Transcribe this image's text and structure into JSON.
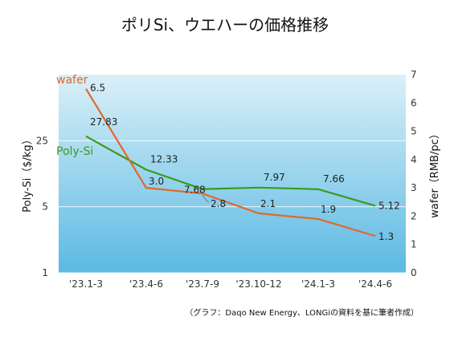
{
  "chart_data": {
    "type": "line",
    "title": "ポリSi、ウエハーの価格推移",
    "categories": [
      "'23.1-3",
      "'23.4-6",
      "'23.7-9",
      "'23.10-12",
      "'24.1-3",
      "'24.4-6"
    ],
    "series": [
      {
        "name": "Poly-Si",
        "axis": "left",
        "color": "#3a9a1f",
        "values": [
          27.83,
          12.33,
          7.68,
          7.97,
          7.66,
          5.12
        ]
      },
      {
        "name": "wafer",
        "axis": "right",
        "color": "#e0682a",
        "values": [
          6.5,
          3.0,
          2.8,
          2.1,
          1.9,
          1.3
        ]
      }
    ],
    "y_left": {
      "label": "Poly-Si（$/kg）",
      "scale": "log",
      "range": [
        1,
        125
      ],
      "ticks": [
        1,
        5,
        25
      ]
    },
    "y_right": {
      "label": "wafer（RMB/pc）",
      "scale": "linear",
      "range": [
        0,
        7
      ],
      "ticks": [
        0,
        1,
        2,
        3,
        4,
        5,
        6,
        7
      ]
    },
    "source": "（グラフ：Daqo New Energy、LONGiの資料を基に筆者作成）",
    "background_gradient": [
      "#daf0f8",
      "#5bb9e3"
    ]
  }
}
